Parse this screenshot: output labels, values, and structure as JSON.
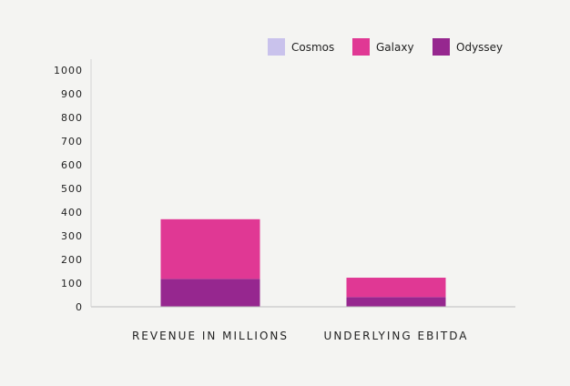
{
  "chart_data": {
    "type": "bar",
    "stacked": true,
    "categories": [
      "REVENUE IN MILLIONS",
      "UNDERLYING EBITDA"
    ],
    "series": [
      {
        "name": "Cosmos",
        "color": "#c9c2ec",
        "values": [
          0,
          0
        ]
      },
      {
        "name": "Galaxy",
        "color": "#e03894",
        "values": [
          252,
          82
        ]
      },
      {
        "name": "Odyssey",
        "color": "#96278f",
        "values": [
          118,
          41
        ]
      }
    ],
    "stack_order": [
      "Odyssey",
      "Galaxy",
      "Cosmos"
    ],
    "yticks": [
      0,
      100,
      200,
      300,
      400,
      500,
      600,
      700,
      800,
      900,
      1000
    ],
    "ylim": [
      0,
      1000
    ],
    "legend_position": "top-right",
    "grid": false,
    "title": "",
    "xlabel": "",
    "ylabel": ""
  }
}
